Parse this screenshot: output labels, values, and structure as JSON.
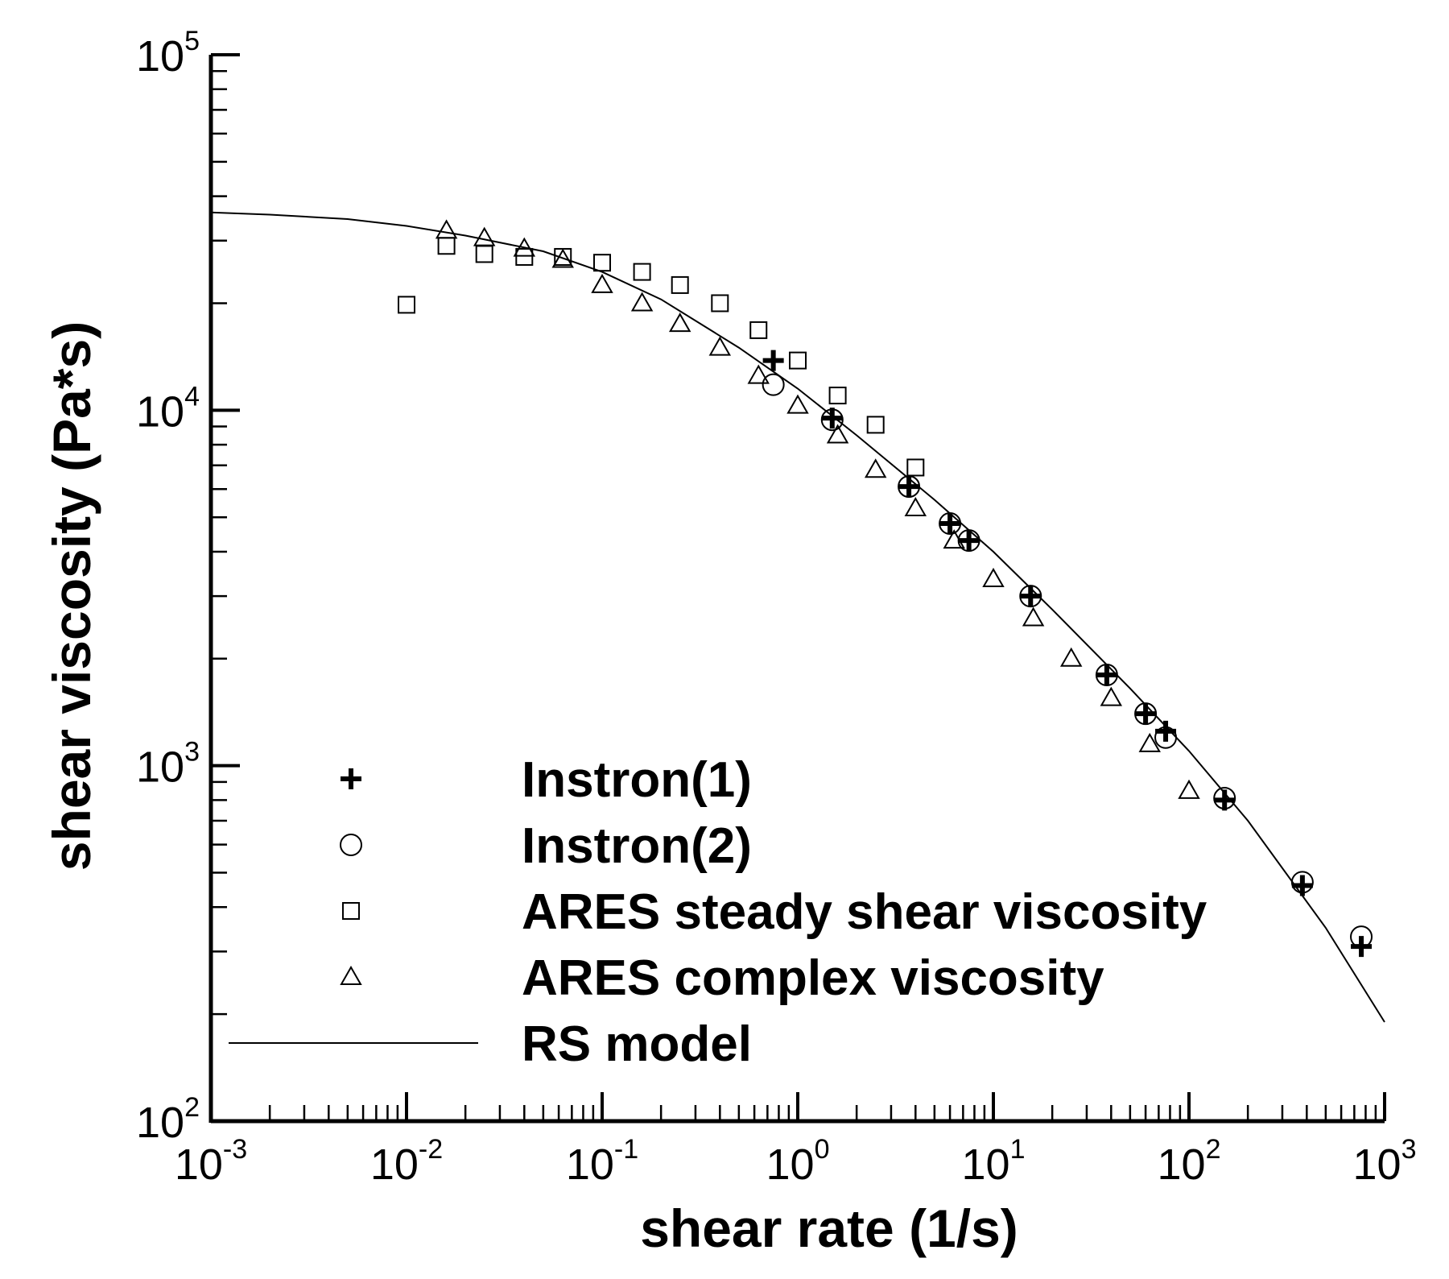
{
  "chart_data": {
    "type": "scatter",
    "title": "",
    "xlabel": "shear rate (1/s)",
    "ylabel": "shear viscosity (Pa*s)",
    "xscale": "log",
    "yscale": "log",
    "xlim": [
      0.001,
      1000
    ],
    "ylim": [
      100,
      100000
    ],
    "x_ticks": [
      {
        "value": 0.001,
        "base": "10",
        "exp": "-3"
      },
      {
        "value": 0.01,
        "base": "10",
        "exp": "-2"
      },
      {
        "value": 0.1,
        "base": "10",
        "exp": "-1"
      },
      {
        "value": 1,
        "base": "10",
        "exp": "0"
      },
      {
        "value": 10,
        "base": "10",
        "exp": "1"
      },
      {
        "value": 100,
        "base": "10",
        "exp": "2"
      },
      {
        "value": 1000,
        "base": "10",
        "exp": "3"
      }
    ],
    "y_ticks": [
      {
        "value": 100,
        "base": "10",
        "exp": "2"
      },
      {
        "value": 1000,
        "base": "10",
        "exp": "3"
      },
      {
        "value": 10000,
        "base": "10",
        "exp": "4"
      },
      {
        "value": 100000,
        "base": "10",
        "exp": "5"
      }
    ],
    "legend_position": "lower-left",
    "series": [
      {
        "name": "Instron(1)",
        "marker": "plus",
        "x": [
          0.75,
          1.5,
          3.7,
          6.0,
          7.5,
          15.5,
          38,
          60,
          76,
          152,
          380,
          760
        ],
        "y": [
          13800,
          9500,
          6100,
          4800,
          4300,
          3000,
          1800,
          1400,
          1250,
          800,
          460,
          310
        ]
      },
      {
        "name": "Instron(2)",
        "marker": "circle",
        "x": [
          0.75,
          1.5,
          3.7,
          6.0,
          7.5,
          15.5,
          38,
          60,
          76,
          152,
          380,
          760
        ],
        "y": [
          11800,
          9400,
          6100,
          4800,
          4300,
          3000,
          1800,
          1400,
          1200,
          810,
          470,
          330
        ]
      },
      {
        "name": "ARES steady shear viscosity",
        "marker": "square",
        "x": [
          0.01,
          0.016,
          0.025,
          0.04,
          0.063,
          0.1,
          0.16,
          0.25,
          0.4,
          0.63,
          1.0,
          1.6,
          2.5,
          4.0
        ],
        "y": [
          19800,
          29000,
          27500,
          27000,
          27000,
          26000,
          24500,
          22500,
          20000,
          16800,
          13800,
          11000,
          9100,
          6900
        ]
      },
      {
        "name": "ARES complex viscosity",
        "marker": "triangle",
        "x": [
          0.016,
          0.025,
          0.04,
          0.063,
          0.1,
          0.16,
          0.25,
          0.4,
          0.63,
          1.0,
          1.6,
          2.5,
          4.0,
          6.3,
          10,
          16,
          25,
          40,
          63,
          100
        ],
        "y": [
          32000,
          30500,
          28500,
          26500,
          22500,
          20000,
          17500,
          15000,
          12500,
          10300,
          8500,
          6800,
          5300,
          4300,
          3350,
          2600,
          2000,
          1550,
          1150,
          850
        ]
      },
      {
        "name": "RS model",
        "marker": "line",
        "x": [
          0.001,
          0.002,
          0.005,
          0.01,
          0.02,
          0.05,
          0.1,
          0.2,
          0.5,
          1,
          2,
          5,
          10,
          20,
          50,
          100,
          200,
          500,
          1000
        ],
        "y": [
          36000,
          35500,
          34500,
          33000,
          31000,
          28000,
          24500,
          20500,
          15000,
          11500,
          8500,
          5600,
          4000,
          2750,
          1650,
          1100,
          700,
          350,
          190
        ]
      }
    ]
  }
}
